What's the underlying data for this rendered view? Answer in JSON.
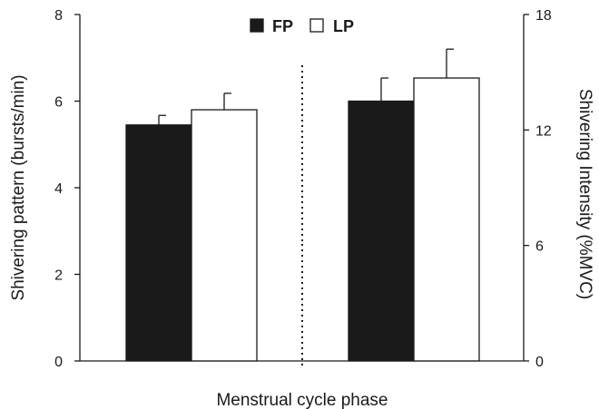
{
  "chart_data": {
    "type": "bar",
    "title": "",
    "xlabel": "Menstrual cycle phase",
    "ylabel": "Shivering pattern (bursts/min)",
    "y2label": "Shivering Intensity (%MVC)",
    "ylim": [
      0,
      8
    ],
    "y2lim": [
      0,
      18
    ],
    "yticks": [
      0,
      2,
      4,
      6,
      8
    ],
    "y2ticks": [
      0,
      6,
      12,
      18
    ],
    "grid": false,
    "legend_position": "top-center",
    "groups": [
      {
        "axis": "left",
        "FP": 5.45,
        "LP": 5.8,
        "FP_err": 0.22,
        "LP_err": 0.38
      },
      {
        "axis": "right",
        "FP": 13.5,
        "LP": 14.7,
        "FP_err": 1.2,
        "LP_err": 1.5
      }
    ],
    "series": [
      {
        "name": "FP",
        "color": "#1a1a1a",
        "values": [
          5.45,
          13.5
        ],
        "errors": [
          0.22,
          1.2
        ]
      },
      {
        "name": "LP",
        "color": "#ffffff",
        "values": [
          5.8,
          14.7
        ],
        "errors": [
          0.38,
          1.5
        ]
      }
    ]
  }
}
